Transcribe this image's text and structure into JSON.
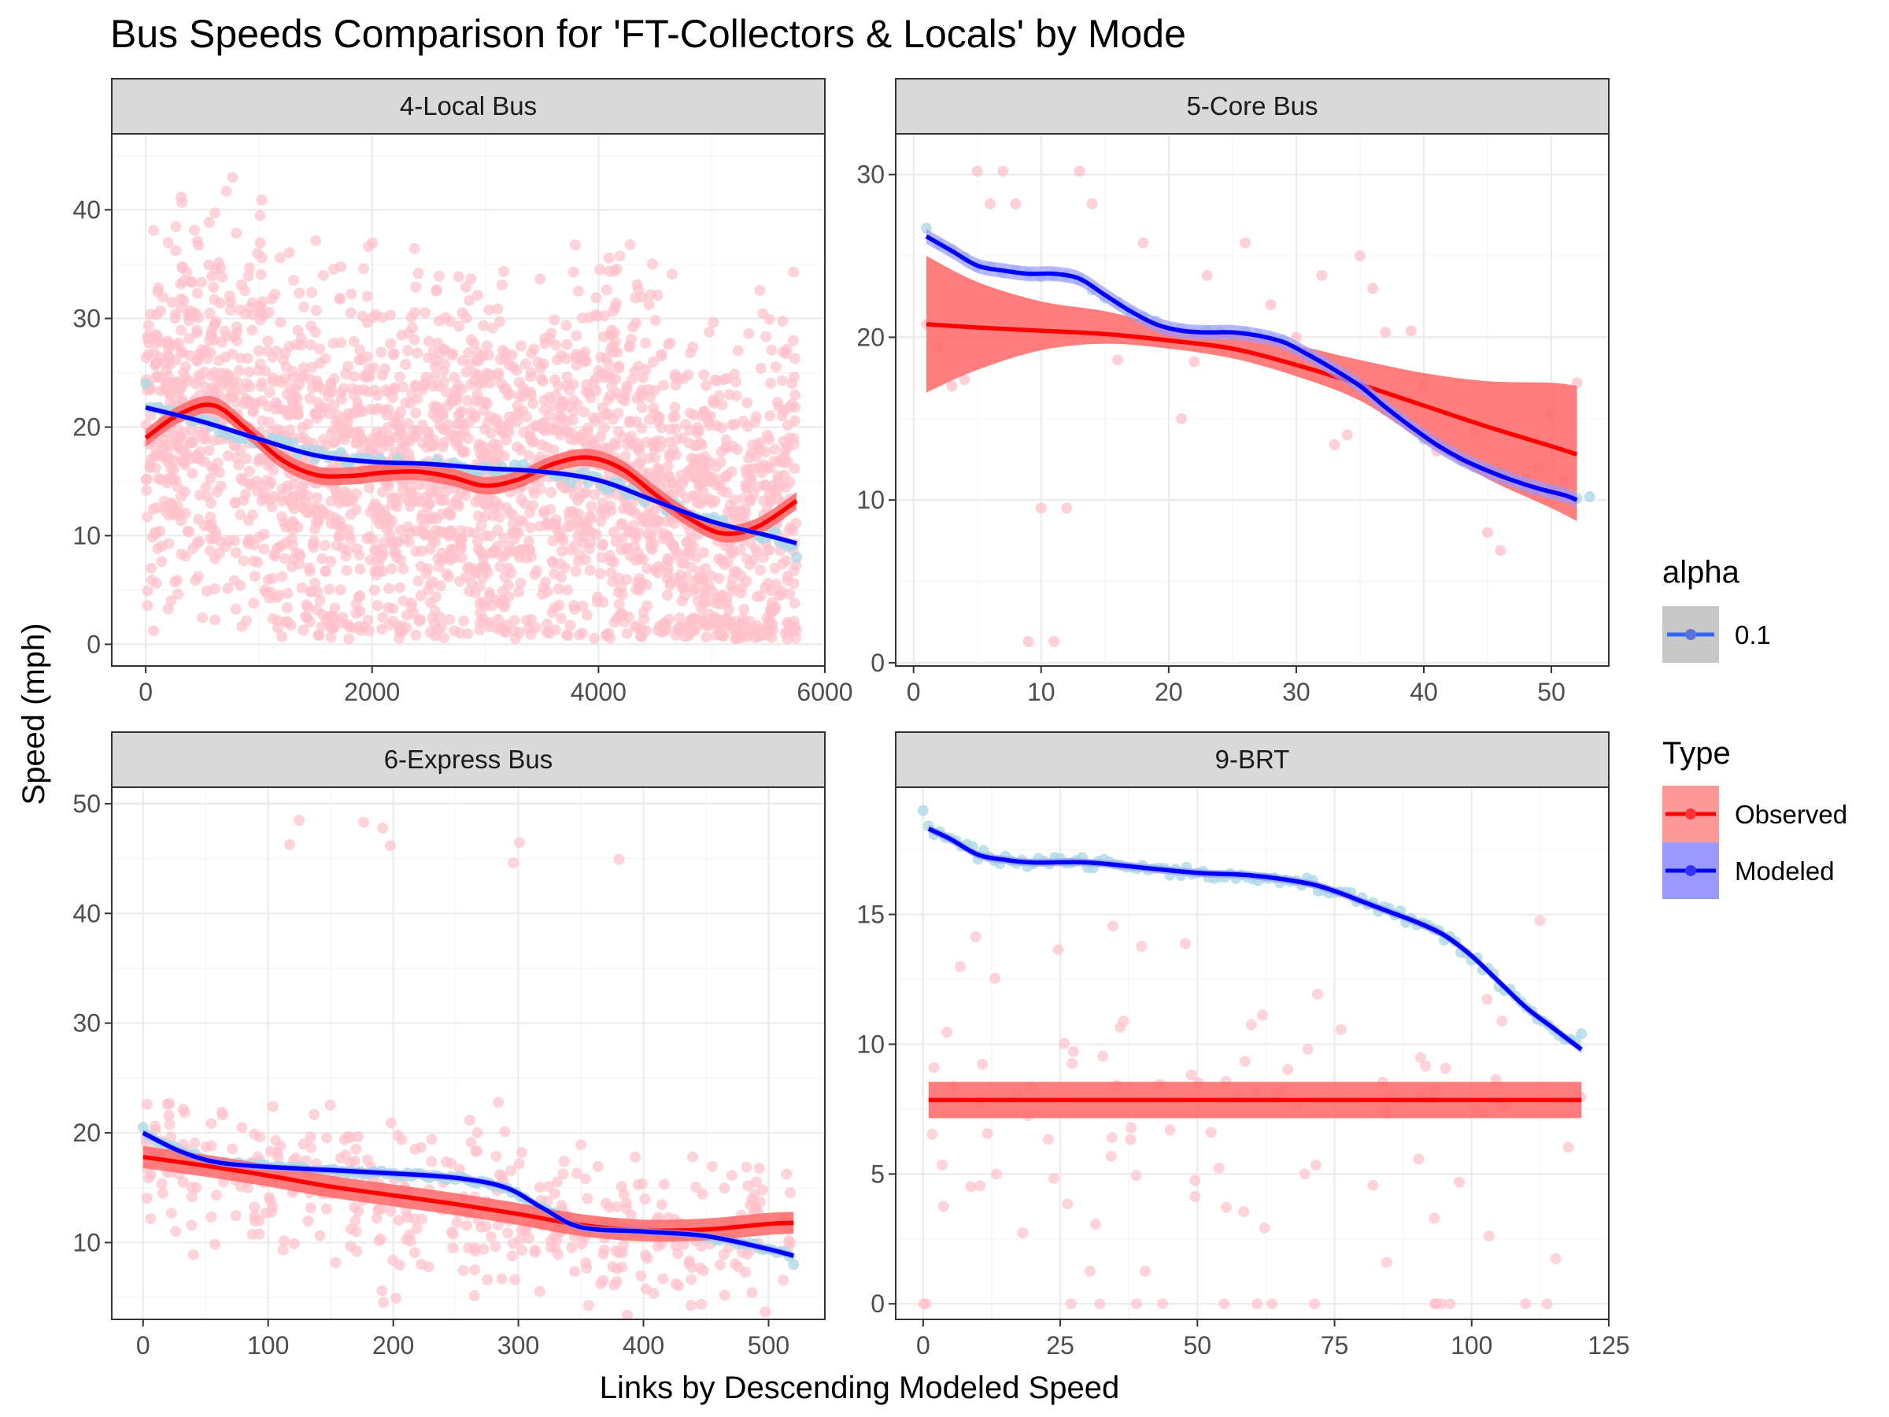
{
  "title": "Bus Speeds Comparison for 'FT-Collectors & Locals' by Mode",
  "xlabel": "Links by Descending Modeled Speed",
  "ylabel": "Speed (mph)",
  "colors": {
    "observed": "#ff0000",
    "observed_ribbon": "#ff6666",
    "modeled": "#0000ff",
    "modeled_ribbon": "#9999ff",
    "observed_points": "#ffc0cb",
    "modeled_points": "#add8e6",
    "strip_fill": "#d9d9d9"
  },
  "legend": {
    "alpha": {
      "title": "alpha",
      "items": [
        {
          "label": "0.1",
          "color": "#3366ff"
        }
      ]
    },
    "type": {
      "title": "Type",
      "items": [
        {
          "label": "Observed",
          "color": "#ff0000",
          "fill": "#ff9999"
        },
        {
          "label": "Modeled",
          "color": "#0000ff",
          "fill": "#9999ff"
        }
      ]
    }
  },
  "chart_data": [
    {
      "type": "scatter",
      "panel": "4-Local Bus",
      "xlim": [
        -300,
        6000
      ],
      "ylim": [
        -2,
        47
      ],
      "x_ticks": [
        0,
        2000,
        4000,
        6000
      ],
      "y_ticks": [
        0,
        10,
        20,
        30,
        40
      ],
      "x_max": 5750,
      "series": [
        {
          "name": "Observed",
          "smooth": {
            "x": [
              0,
              300,
              600,
              900,
              1200,
              1500,
              1800,
              2100,
              2400,
              2700,
              3000,
              3300,
              3600,
              3900,
              4200,
              4500,
              4800,
              5100,
              5400,
              5750
            ],
            "y": [
              19.0,
              21.2,
              22.0,
              19.7,
              17.0,
              15.6,
              15.5,
              15.8,
              15.9,
              15.4,
              14.6,
              15.2,
              16.6,
              17.2,
              16.2,
              13.8,
              11.6,
              10.2,
              10.8,
              13.2
            ]
          },
          "band": 0.8,
          "points": {
            "n": 2600,
            "ymin": 0.5,
            "ymax": 45
          }
        },
        {
          "name": "Modeled",
          "smooth": {
            "x": [
              0,
              500,
              1000,
              1500,
              2000,
              2500,
              3000,
              3500,
              4000,
              4500,
              5000,
              5500,
              5750
            ],
            "y": [
              21.8,
              20.5,
              18.9,
              17.4,
              16.8,
              16.6,
              16.2,
              15.9,
              15.1,
              13.2,
              11.3,
              10.0,
              9.3
            ]
          },
          "band": 0.25,
          "points": {
            "ystart": 24,
            "yend": 8
          }
        }
      ]
    },
    {
      "type": "scatter",
      "panel": "5-Core Bus",
      "xlim": [
        -1.4,
        54.5
      ],
      "ylim": [
        -0.2,
        32.5
      ],
      "x_ticks": [
        0,
        10,
        20,
        30,
        40,
        50
      ],
      "y_ticks": [
        0,
        10,
        20,
        30
      ],
      "x_max": 52,
      "series": [
        {
          "name": "Observed",
          "smooth": {
            "x": [
              1,
              5,
              10,
              15,
              20,
              25,
              30,
              35,
              40,
              45,
              50,
              52
            ],
            "y": [
              20.8,
              20.6,
              20.4,
              20.2,
              19.8,
              19.3,
              18.3,
              17.1,
              15.8,
              14.5,
              13.3,
              12.8
            ]
          },
          "band_lo": [
            16.6,
            18.0,
            19.2,
            19.6,
            19.3,
            18.7,
            17.6,
            16.1,
            13.6,
            11.3,
            9.5,
            8.7
          ],
          "band_hi": [
            25.0,
            23.4,
            22.2,
            21.6,
            20.7,
            20.2,
            19.5,
            18.6,
            17.8,
            17.3,
            17.2,
            17.0
          ],
          "points": [
            [
              1,
              20.8
            ],
            [
              2,
              19.4
            ],
            [
              3,
              17
            ],
            [
              4,
              17.4
            ],
            [
              5,
              30.2
            ],
            [
              6,
              28.2
            ],
            [
              7,
              30.2
            ],
            [
              8,
              28.2
            ],
            [
              9,
              1.3
            ],
            [
              10,
              9.5
            ],
            [
              11,
              1.3
            ],
            [
              12,
              9.5
            ],
            [
              13,
              30.2
            ],
            [
              14,
              28.2
            ],
            [
              16,
              18.6
            ],
            [
              18,
              25.8
            ],
            [
              21,
              15.0
            ],
            [
              22,
              18.5
            ],
            [
              23,
              23.8
            ],
            [
              26,
              25.8
            ],
            [
              28,
              22.0
            ],
            [
              30,
              20.0
            ],
            [
              32,
              23.8
            ],
            [
              33,
              13.4
            ],
            [
              34,
              14.0
            ],
            [
              35,
              25.0
            ],
            [
              36,
              23.0
            ],
            [
              37,
              20.3
            ],
            [
              39,
              20.4
            ],
            [
              40,
              17.0
            ],
            [
              41,
              13.0
            ],
            [
              44,
              14.2
            ],
            [
              45,
              8.0
            ],
            [
              46,
              6.9
            ],
            [
              48,
              11.3
            ],
            [
              49,
              12.0
            ],
            [
              50,
              15.3
            ],
            [
              51,
              11.2
            ],
            [
              52,
              17.2
            ]
          ]
        },
        {
          "name": "Modeled",
          "smooth": {
            "x": [
              1,
              3,
              5,
              7,
              9,
              11,
              13,
              15,
              17,
              19,
              21,
              23,
              25,
              27,
              29,
              31,
              33,
              35,
              37,
              39,
              41,
              43,
              45,
              47,
              49,
              51,
              52
            ],
            "y": [
              26.2,
              25.3,
              24.4,
              24.1,
              23.9,
              23.9,
              23.6,
              22.6,
              21.6,
              20.8,
              20.4,
              20.3,
              20.3,
              20.1,
              19.7,
              18.9,
              18.0,
              17.0,
              15.7,
              14.5,
              13.4,
              12.5,
              11.8,
              11.2,
              10.7,
              10.3,
              10.0
            ]
          },
          "band": 0.45,
          "points": {
            "ystart": 26.7,
            "yend": 10.2
          }
        }
      ]
    },
    {
      "type": "scatter",
      "panel": "6-Express Bus",
      "xlim": [
        -25,
        545
      ],
      "ylim": [
        3,
        51.5
      ],
      "x_ticks": [
        0,
        100,
        200,
        300,
        400,
        500
      ],
      "y_ticks": [
        10,
        20,
        30,
        40,
        50
      ],
      "x_max": 520,
      "series": [
        {
          "name": "Observed",
          "smooth": {
            "x": [
              0,
              50,
              100,
              150,
              200,
              250,
              300,
              350,
              400,
              450,
              500,
              520
            ],
            "y": [
              17.8,
              17.0,
              16.1,
              15.1,
              14.3,
              13.5,
              12.6,
              11.6,
              11.1,
              11.2,
              11.7,
              11.8
            ]
          },
          "band": 1.0,
          "points": {
            "n": 420,
            "ymin": 3,
            "ymax": 23
          }
        },
        {
          "name": "Modeled",
          "smooth": {
            "x": [
              0,
              30,
              60,
              100,
              150,
              200,
              250,
              290,
              320,
              350,
              400,
              450,
              500,
              520
            ],
            "y": [
              20.0,
              18.3,
              17.3,
              16.9,
              16.6,
              16.3,
              15.9,
              15.0,
              13.1,
              11.4,
              11.0,
              10.6,
              9.4,
              8.8
            ]
          },
          "band": 0.3,
          "points": {
            "ystart": 20.5,
            "yend": 8
          }
        }
      ]
    },
    {
      "type": "scatter",
      "panel": "9-BRT",
      "xlim": [
        -5,
        125
      ],
      "ylim": [
        -0.6,
        19.9
      ],
      "x_ticks": [
        0,
        25,
        50,
        75,
        100,
        125
      ],
      "y_ticks": [
        0,
        5,
        10,
        15
      ],
      "x_max": 120,
      "series": [
        {
          "name": "Observed",
          "smooth": {
            "x": [
              1,
              120
            ],
            "y": [
              7.85,
              7.85
            ]
          },
          "band": 0.7,
          "points": {
            "n": 110,
            "ymin": 0,
            "ymax": 15
          }
        },
        {
          "name": "Modeled",
          "smooth": {
            "x": [
              1,
              5,
              10,
              15,
              20,
              30,
              40,
              50,
              60,
              70,
              75,
              80,
              85,
              90,
              95,
              100,
              105,
              110,
              115,
              120
            ],
            "y": [
              18.3,
              17.9,
              17.3,
              17.1,
              17.0,
              17.0,
              16.8,
              16.6,
              16.5,
              16.2,
              15.9,
              15.5,
              15.1,
              14.7,
              14.2,
              13.4,
              12.4,
              11.4,
              10.6,
              9.8
            ]
          },
          "band": 0.15,
          "points": {
            "ystart": 19,
            "yend": 10.4
          }
        }
      ]
    }
  ]
}
